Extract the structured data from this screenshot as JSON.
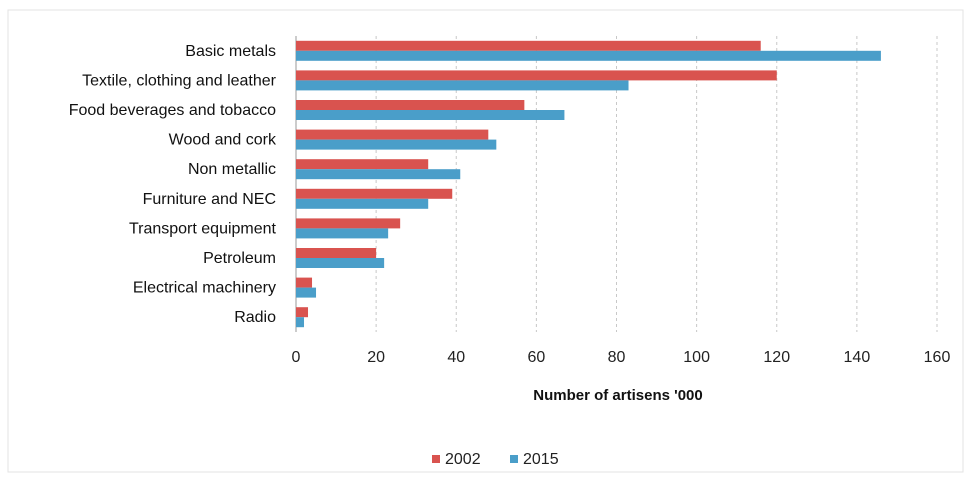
{
  "chart_data": {
    "type": "bar",
    "orientation": "horizontal",
    "title": "",
    "xlabel": "Number of artisens '000",
    "ylabel": "",
    "xlim": [
      0,
      160
    ],
    "x_ticks": [
      0,
      20,
      40,
      60,
      80,
      100,
      120,
      140,
      160
    ],
    "grid": true,
    "legend_position": "bottom",
    "categories": [
      "Basic metals",
      "Textile, clothing and leather",
      "Food beverages and tobacco",
      "Wood and cork",
      "Non metallic",
      "Furniture and NEC",
      "Transport equipment",
      "Petroleum",
      "Electrical machinery",
      "Radio"
    ],
    "series": [
      {
        "name": "2002",
        "color": "#d9534f",
        "values": [
          116,
          120,
          57,
          48,
          33,
          39,
          26,
          20,
          4,
          3
        ]
      },
      {
        "name": "2015",
        "color": "#4a9ec9",
        "values": [
          146,
          83,
          67,
          50,
          41,
          33,
          23,
          22,
          5,
          2
        ]
      }
    ]
  }
}
